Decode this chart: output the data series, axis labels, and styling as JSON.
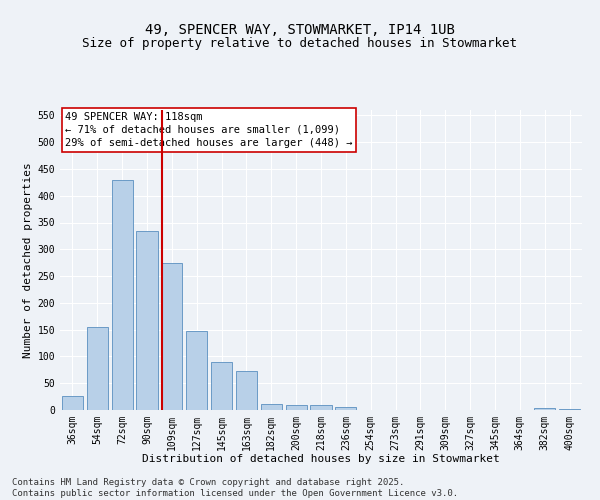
{
  "title_line1": "49, SPENCER WAY, STOWMARKET, IP14 1UB",
  "title_line2": "Size of property relative to detached houses in Stowmarket",
  "xlabel": "Distribution of detached houses by size in Stowmarket",
  "ylabel": "Number of detached properties",
  "categories": [
    "36sqm",
    "54sqm",
    "72sqm",
    "90sqm",
    "109sqm",
    "127sqm",
    "145sqm",
    "163sqm",
    "182sqm",
    "200sqm",
    "218sqm",
    "236sqm",
    "254sqm",
    "273sqm",
    "291sqm",
    "309sqm",
    "327sqm",
    "345sqm",
    "364sqm",
    "382sqm",
    "400sqm"
  ],
  "values": [
    27,
    155,
    430,
    335,
    275,
    148,
    90,
    72,
    12,
    10,
    10,
    5,
    0,
    0,
    0,
    0,
    0,
    0,
    0,
    3,
    1
  ],
  "bar_color": "#b8d0e8",
  "bar_edge_color": "#5a8fc0",
  "vline_color": "#cc0000",
  "vline_x": 3.6,
  "ylim": [
    0,
    560
  ],
  "yticks": [
    0,
    50,
    100,
    150,
    200,
    250,
    300,
    350,
    400,
    450,
    500,
    550
  ],
  "annotation_text_line1": "49 SPENCER WAY: 118sqm",
  "annotation_text_line2": "← 71% of detached houses are smaller (1,099)",
  "annotation_text_line3": "29% of semi-detached houses are larger (448) →",
  "annotation_box_color": "#ffffff",
  "annotation_box_edge_color": "#cc0000",
  "footer_line1": "Contains HM Land Registry data © Crown copyright and database right 2025.",
  "footer_line2": "Contains public sector information licensed under the Open Government Licence v3.0.",
  "bg_color": "#eef2f7",
  "plot_bg_color": "#eef2f7",
  "grid_color": "#ffffff",
  "title_fontsize": 10,
  "subtitle_fontsize": 9,
  "axis_label_fontsize": 8,
  "tick_fontsize": 7,
  "annotation_fontsize": 7.5,
  "footer_fontsize": 6.5
}
